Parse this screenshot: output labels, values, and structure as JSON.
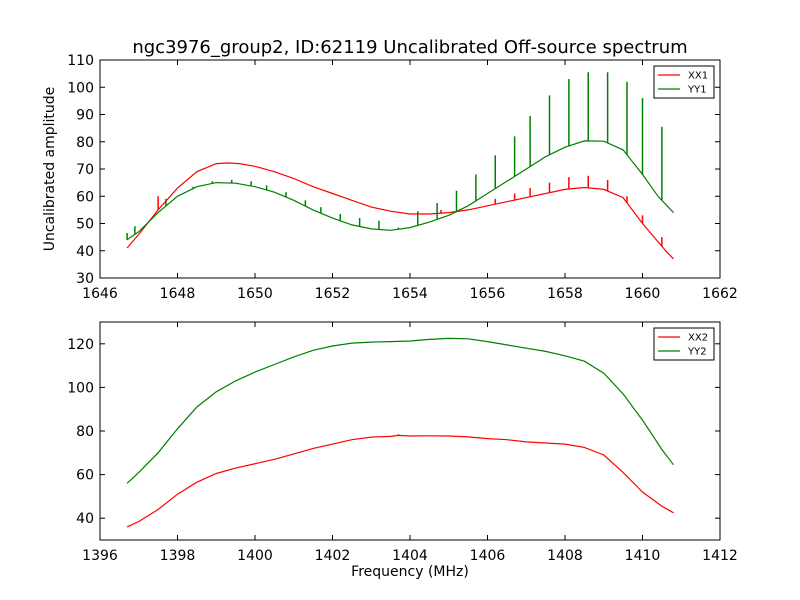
{
  "chart_data": [
    {
      "type": "line",
      "title": "ngc3976_group2, ID:62119 Uncalibrated Off-source spectrum",
      "xlabel": "",
      "ylabel": "Uncalibrated amplitude",
      "xlim": [
        1646,
        1662
      ],
      "ylim": [
        30,
        110
      ],
      "xticks": [
        "1646",
        "1648",
        "1650",
        "1652",
        "1654",
        "1656",
        "1658",
        "1660",
        "1662"
      ],
      "yticks": [
        "30",
        "40",
        "50",
        "60",
        "70",
        "80",
        "90",
        "100",
        "110"
      ],
      "legend_position": "top-right",
      "series": [
        {
          "name": "XX1",
          "color": "#ff0000",
          "x": [
            1646.7,
            1647.0,
            1647.5,
            1648.0,
            1648.5,
            1649.0,
            1649.3,
            1649.6,
            1650.0,
            1650.5,
            1651.0,
            1651.5,
            1652.0,
            1652.5,
            1653.0,
            1653.5,
            1654.0,
            1654.5,
            1655.0,
            1655.5,
            1656.0,
            1656.5,
            1657.0,
            1657.5,
            1658.0,
            1658.5,
            1659.0,
            1659.5,
            1660.0,
            1660.3,
            1660.6,
            1660.8
          ],
          "y": [
            41,
            46,
            55,
            63,
            69,
            72,
            72.2,
            72,
            71,
            69,
            66.5,
            63.5,
            61,
            58.5,
            56,
            54.5,
            53.5,
            53.5,
            54,
            55,
            56.5,
            58,
            59.5,
            61,
            62.5,
            63.2,
            62.5,
            59.5,
            50,
            45,
            40,
            37
          ],
          "spikes": [
            [
              1647.5,
              60
            ],
            [
              1654.8,
              55
            ],
            [
              1656.2,
              59
            ],
            [
              1656.7,
              61
            ],
            [
              1657.1,
              63
            ],
            [
              1657.6,
              65
            ],
            [
              1658.1,
              67
            ],
            [
              1658.6,
              67.5
            ],
            [
              1659.1,
              66
            ],
            [
              1659.6,
              60
            ],
            [
              1660.0,
              53
            ],
            [
              1660.5,
              45
            ]
          ]
        },
        {
          "name": "YY1",
          "color": "#008000",
          "x": [
            1646.7,
            1647.0,
            1647.5,
            1648.0,
            1648.5,
            1649.0,
            1649.5,
            1650.0,
            1650.5,
            1651.0,
            1651.5,
            1652.0,
            1652.5,
            1653.0,
            1653.5,
            1654.0,
            1654.5,
            1655.0,
            1655.5,
            1656.0,
            1656.5,
            1657.0,
            1657.5,
            1658.0,
            1658.5,
            1659.0,
            1659.5,
            1660.0,
            1660.4,
            1660.8
          ],
          "y": [
            44,
            47,
            54,
            60,
            63.5,
            65,
            64.8,
            63.5,
            61.5,
            58.5,
            55,
            52,
            49.5,
            48,
            47.5,
            48.5,
            50.5,
            53,
            56.5,
            61,
            65.5,
            70,
            74.5,
            78,
            80.3,
            80.2,
            77,
            68,
            60,
            54
          ],
          "spikes": [
            [
              1646.7,
              46.5
            ],
            [
              1646.9,
              49
            ],
            [
              1647.7,
              59
            ],
            [
              1648.4,
              63.5
            ],
            [
              1648.9,
              65.5
            ],
            [
              1649.4,
              66
            ],
            [
              1649.9,
              65.5
            ],
            [
              1650.3,
              64
            ],
            [
              1650.8,
              61.5
            ],
            [
              1651.3,
              58.5
            ],
            [
              1651.7,
              56
            ],
            [
              1652.2,
              53.5
            ],
            [
              1652.7,
              52
            ],
            [
              1653.2,
              51
            ],
            [
              1653.7,
              48.5
            ],
            [
              1654.2,
              54.5
            ],
            [
              1654.7,
              57.5
            ],
            [
              1655.2,
              62
            ],
            [
              1655.7,
              68
            ],
            [
              1656.2,
              75
            ],
            [
              1656.7,
              82
            ],
            [
              1657.1,
              89.5
            ],
            [
              1657.6,
              97
            ],
            [
              1658.1,
              103
            ],
            [
              1658.6,
              105.5
            ],
            [
              1659.1,
              105.5
            ],
            [
              1659.6,
              102
            ],
            [
              1660.0,
              96
            ],
            [
              1660.5,
              85.5
            ]
          ]
        }
      ]
    },
    {
      "type": "line",
      "title": "",
      "xlabel": "Frequency (MHz)",
      "ylabel": "",
      "xlim": [
        1396,
        1412
      ],
      "ylim": [
        30,
        130
      ],
      "xticks": [
        "1396",
        "1398",
        "1400",
        "1402",
        "1404",
        "1406",
        "1408",
        "1410",
        "1412"
      ],
      "yticks": [
        "40",
        "60",
        "80",
        "100",
        "120"
      ],
      "legend_position": "top-right",
      "series": [
        {
          "name": "XX2",
          "color": "#ff0000",
          "x": [
            1396.7,
            1397.0,
            1397.5,
            1398.0,
            1398.5,
            1399.0,
            1399.5,
            1400.0,
            1400.5,
            1401.0,
            1401.5,
            1402.0,
            1402.5,
            1403.0,
            1403.5,
            1403.7,
            1404.0,
            1404.5,
            1405.0,
            1405.5,
            1406.0,
            1406.5,
            1407.0,
            1407.5,
            1408.0,
            1408.5,
            1409.0,
            1409.5,
            1410.0,
            1410.5,
            1410.8
          ],
          "y": [
            36,
            38.5,
            44,
            51,
            56.5,
            60.5,
            63,
            65,
            67,
            69.5,
            72,
            74,
            76,
            77.2,
            77.5,
            78,
            77.7,
            77.8,
            77.7,
            77.3,
            76.5,
            76,
            75,
            74.5,
            74,
            72.5,
            69,
            61,
            52,
            45.5,
            42.5
          ],
          "spikes": [
            [
              1403.7,
              78.5
            ]
          ]
        },
        {
          "name": "YY2",
          "color": "#008000",
          "x": [
            1396.7,
            1397.0,
            1397.5,
            1398.0,
            1398.5,
            1399.0,
            1399.5,
            1400.0,
            1400.5,
            1401.0,
            1401.5,
            1402.0,
            1402.5,
            1403.0,
            1403.5,
            1404.0,
            1404.5,
            1405.0,
            1405.5,
            1406.0,
            1406.5,
            1407.0,
            1407.5,
            1408.0,
            1408.5,
            1409.0,
            1409.5,
            1410.0,
            1410.5,
            1410.8
          ],
          "y": [
            56,
            61,
            70,
            81,
            91,
            98,
            103,
            107,
            110.5,
            114,
            117,
            119,
            120.3,
            120.8,
            121,
            121.3,
            122,
            122.5,
            122.3,
            121,
            119.5,
            118,
            116.5,
            114.5,
            112,
            106.5,
            97,
            85,
            71.5,
            64.5
          ],
          "spikes": []
        }
      ]
    }
  ]
}
